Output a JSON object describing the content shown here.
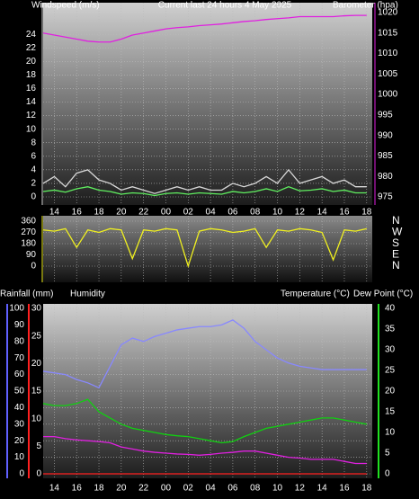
{
  "chart_data": [
    {
      "type": "line",
      "title": "Current last 24 hours 4 May 2025",
      "y_label": "Windspeed (m/s)",
      "y2_label": "Barometer (hpa)",
      "x": [
        13,
        14,
        15,
        16,
        17,
        18,
        19,
        20,
        21,
        22,
        23,
        24,
        25,
        26,
        27,
        28,
        29,
        30,
        31,
        32,
        33,
        34,
        35,
        36,
        37,
        38,
        39,
        40,
        41,
        42
      ],
      "xlim": [
        13,
        42.5
      ],
      "xticks": [
        14,
        16,
        18,
        20,
        22,
        {
          "value": 24,
          "label": "00"
        },
        {
          "value": 26,
          "label": "02"
        },
        {
          "value": 28,
          "label": "04"
        },
        {
          "value": 30,
          "label": "06"
        },
        {
          "value": 32,
          "label": "08"
        },
        {
          "value": 34,
          "label": "10"
        },
        {
          "value": 36,
          "label": "12"
        },
        {
          "value": 38,
          "label": "14"
        },
        {
          "value": 40,
          "label": "16"
        },
        {
          "value": 42,
          "label": "18"
        }
      ],
      "ylim": [
        0,
        28
      ],
      "yticks": [
        0,
        2,
        4,
        6,
        8,
        10,
        12,
        14,
        16,
        18,
        20,
        22,
        24
      ],
      "ytick_color": "#ffffff",
      "y2lim": [
        975,
        1021.3
      ],
      "y2ticks": [
        975,
        980,
        985,
        990,
        995,
        1000,
        1005,
        1010,
        1015,
        1020
      ],
      "y2tick_color": "#e020e0",
      "grid": true,
      "series": [
        {
          "color": "#d8d8d8",
          "values": [
            2,
            3,
            1.5,
            3.5,
            4,
            2.5,
            2,
            1,
            1.5,
            1,
            0.5,
            1,
            1.5,
            1,
            1.5,
            1,
            1,
            2,
            1.5,
            2,
            3,
            2,
            4,
            2,
            2.5,
            3,
            2,
            2.5,
            1.5,
            1.5
          ]
        },
        {
          "color": "#60f060",
          "values": [
            0.8,
            1,
            0.7,
            1.2,
            1.5,
            1,
            0.8,
            0.4,
            0.6,
            0.5,
            0.2,
            0.5,
            0.6,
            0.4,
            0.6,
            0.5,
            0.4,
            0.8,
            0.6,
            0.8,
            1.2,
            0.8,
            1.5,
            0.9,
            1,
            1.2,
            0.8,
            1,
            0.6,
            0.6
          ]
        },
        {
          "color": "#e020e0",
          "axis": "y2",
          "values": [
            1015,
            1014.5,
            1014,
            1013.5,
            1013,
            1012.8,
            1012.8,
            1013.5,
            1014.5,
            1015,
            1015.5,
            1016,
            1016.3,
            1016.5,
            1016.8,
            1017,
            1017.2,
            1017.5,
            1017.8,
            1018,
            1018.3,
            1018.5,
            1018.7,
            1019,
            1019,
            1019,
            1019,
            1019.2,
            1019.3,
            1019.3
          ]
        }
      ]
    },
    {
      "type": "line",
      "x": [
        13,
        14,
        15,
        16,
        17,
        18,
        19,
        20,
        21,
        22,
        23,
        24,
        25,
        26,
        27,
        28,
        29,
        30,
        31,
        32,
        33,
        34,
        35,
        36,
        37,
        38,
        39,
        40,
        41,
        42
      ],
      "xlim": [
        13,
        42.5
      ],
      "xticks": [
        14,
        16,
        18,
        20,
        22,
        24,
        26,
        28,
        30,
        32,
        34,
        36,
        38,
        40,
        42
      ],
      "ylim": [
        0,
        360
      ],
      "yticks": [
        0,
        90,
        180,
        270,
        360
      ],
      "ytick_color": "#f0f020",
      "y2lim": [
        0,
        360
      ],
      "y2ticks": [
        {
          "value": 360,
          "label": "N"
        },
        {
          "value": 270,
          "label": "W"
        },
        {
          "value": 180,
          "label": "S"
        },
        {
          "value": 90,
          "label": "E"
        },
        {
          "value": 0,
          "label": "N"
        }
      ],
      "y2tick_color": "#ffffff",
      "grid": true,
      "series": [
        {
          "color": "#f0f020",
          "values": [
            290,
            280,
            300,
            150,
            290,
            270,
            300,
            290,
            60,
            290,
            280,
            300,
            290,
            0,
            280,
            300,
            290,
            270,
            280,
            300,
            150,
            290,
            280,
            300,
            290,
            270,
            50,
            290,
            280,
            300
          ]
        }
      ]
    },
    {
      "type": "line",
      "x": [
        13,
        14,
        15,
        16,
        17,
        18,
        19,
        20,
        21,
        22,
        23,
        24,
        25,
        26,
        27,
        28,
        29,
        30,
        31,
        32,
        33,
        34,
        35,
        36,
        37,
        38,
        39,
        40,
        41,
        42
      ],
      "xlim": [
        13,
        42.5
      ],
      "xticks": [
        14,
        16,
        18,
        20,
        22,
        {
          "value": 24,
          "label": "00"
        },
        {
          "value": 26,
          "label": "02"
        },
        {
          "value": 28,
          "label": "04"
        },
        {
          "value": 30,
          "label": "06"
        },
        {
          "value": 32,
          "label": "08"
        },
        {
          "value": 34,
          "label": "10"
        },
        {
          "value": 36,
          "label": "12"
        },
        {
          "value": 38,
          "label": "14"
        },
        {
          "value": 40,
          "label": "16"
        },
        {
          "value": 42,
          "label": "18"
        }
      ],
      "ylim": [
        0,
        100
      ],
      "yticks": [
        0,
        10,
        20,
        30,
        40,
        50,
        60,
        70,
        80,
        90,
        100
      ],
      "ytick_color": "#8080ff",
      "y2lim": [
        0,
        30
      ],
      "y2ticks": [
        0,
        5,
        10,
        15,
        20,
        25,
        30
      ],
      "y2tick_color": "#ff3030",
      "y3lim": [
        0,
        40
      ],
      "y3ticks": [
        0,
        5,
        10,
        15,
        20,
        25,
        30,
        35,
        40
      ],
      "y3tick_color": "#20e020",
      "grid": true,
      "series": [
        {
          "name": "Rainfall (mm)",
          "color": "#ff2020",
          "axis": "y2",
          "values": [
            0,
            0,
            0,
            0,
            0,
            0,
            0,
            0,
            0,
            0,
            0,
            0,
            0,
            0,
            0,
            0,
            0,
            0,
            0,
            0,
            0,
            0,
            0,
            0,
            0,
            0,
            0,
            0,
            0,
            0
          ]
        },
        {
          "name": "Humidity",
          "color": "#8888ff",
          "values": [
            62,
            61,
            60,
            57,
            55,
            52,
            65,
            78,
            82,
            80,
            83,
            85,
            87,
            88,
            89,
            89,
            90,
            93,
            88,
            80,
            75,
            70,
            67,
            65,
            64,
            63,
            63,
            63,
            63,
            63
          ]
        },
        {
          "name": "Temperature (°C)",
          "color": "#10d010",
          "axis": "y3",
          "values": [
            17,
            16.5,
            16.5,
            17,
            18,
            15,
            13.5,
            12,
            11,
            10.5,
            10,
            9.5,
            9.2,
            9,
            8.5,
            8,
            7.5,
            7.8,
            9,
            10,
            11,
            11.5,
            12,
            12.5,
            13,
            13.5,
            13.5,
            13,
            12.5,
            12
          ]
        },
        {
          "name": "Dew Point (°C)",
          "color": "#e020e0",
          "axis": "y3",
          "values": [
            9,
            9,
            8.5,
            8.2,
            8,
            7.8,
            7.5,
            6.5,
            6,
            5.5,
            5.2,
            5,
            4.8,
            4.7,
            4.5,
            4.7,
            5,
            5.2,
            5.5,
            5.5,
            5,
            4.5,
            4,
            3.8,
            3.5,
            3.5,
            3.5,
            3,
            2.5,
            2.5
          ]
        }
      ]
    }
  ]
}
